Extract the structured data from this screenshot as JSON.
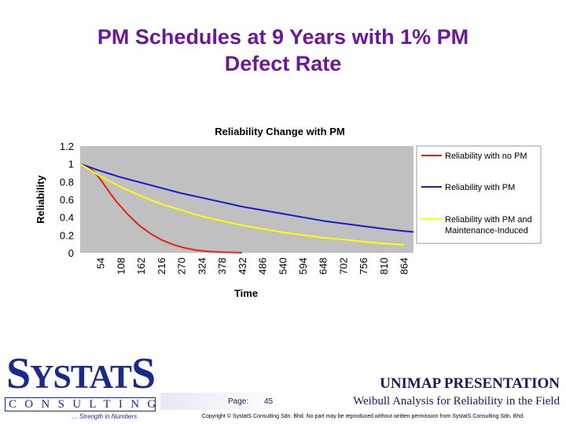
{
  "slide": {
    "title_line1": "PM Schedules at 9 Years with 1% PM",
    "title_line2": "Defect Rate"
  },
  "chart_data": {
    "type": "line",
    "title": "Reliability Change with PM",
    "xlabel": "Time",
    "ylabel": "Reliability",
    "categories": [
      "54",
      "108",
      "162",
      "216",
      "270",
      "324",
      "378",
      "432",
      "486",
      "540",
      "594",
      "648",
      "702",
      "756",
      "810",
      "864"
    ],
    "x_range": [
      0,
      890
    ],
    "ylim": [
      0,
      1.2
    ],
    "yticks": [
      "0",
      "0.2",
      "0.4",
      "0.6",
      "0.8",
      "1",
      "1.2"
    ],
    "grid": false,
    "plot_background": "#c0c0c0",
    "legend_position": "right",
    "series": [
      {
        "name": "Reliability with no PM",
        "color": "#e8201b",
        "x": [
          0,
          20,
          40,
          60,
          80,
          100,
          130,
          160,
          190,
          220,
          250,
          280,
          310,
          340,
          370,
          400,
          432
        ],
        "values": [
          1.0,
          0.97,
          0.9,
          0.79,
          0.67,
          0.56,
          0.42,
          0.3,
          0.21,
          0.14,
          0.09,
          0.055,
          0.03,
          0.017,
          0.009,
          0.004,
          0.002
        ]
      },
      {
        "name": "Reliability with PM",
        "color": "#1a1ad0",
        "x": [
          0,
          54,
          108,
          162,
          216,
          270,
          324,
          378,
          432,
          486,
          540,
          594,
          648,
          702,
          756,
          810,
          864,
          890
        ],
        "values": [
          1.0,
          0.92,
          0.85,
          0.79,
          0.73,
          0.67,
          0.62,
          0.57,
          0.52,
          0.48,
          0.44,
          0.4,
          0.36,
          0.33,
          0.3,
          0.27,
          0.245,
          0.235
        ]
      },
      {
        "name": "Reliability with PM and Maintenance-Induced",
        "color": "#ffff00",
        "x": [
          0,
          54,
          108,
          162,
          216,
          270,
          324,
          378,
          432,
          486,
          540,
          594,
          648,
          702,
          756,
          810,
          864
        ],
        "values": [
          1.0,
          0.86,
          0.74,
          0.64,
          0.55,
          0.48,
          0.41,
          0.36,
          0.31,
          0.27,
          0.23,
          0.2,
          0.17,
          0.15,
          0.125,
          0.105,
          0.09
        ]
      }
    ]
  },
  "logo": {
    "word_S1": "S",
    "word_mid": "YSTAT",
    "word_S2": "S",
    "bar_text": "CONSULTING",
    "tagline": "... Strength in Numbers"
  },
  "footer": {
    "presentation": "UNIMAP PRESENTATION",
    "page_label": "Page:",
    "page_number": "45",
    "subtitle": "Weibull Analysis for Reliability in the Field",
    "copyright": "Copyright © SystatS Consulting Sdn. Bhd. No part may be reproduced without written permission from SystatS Consulting Sdn. Bhd."
  }
}
